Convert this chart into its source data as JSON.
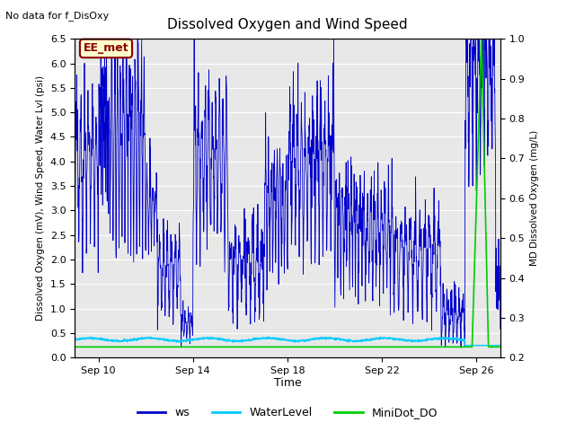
{
  "title": "Dissolved Oxygen and Wind Speed",
  "subtitle": "No data for f_DisOxy",
  "annotation": "EE_met",
  "xlabel": "Time",
  "ylabel_left": "Dissolved Oxygen (mV), Wind Speed, Water Lvl (psi)",
  "ylabel_right": "MD Dissolved Oxygen (mg/L)",
  "ylim_left": [
    0.0,
    6.5
  ],
  "ylim_right": [
    0.2,
    1.0
  ],
  "yticks_left": [
    0.0,
    0.5,
    1.0,
    1.5,
    2.0,
    2.5,
    3.0,
    3.5,
    4.0,
    4.5,
    5.0,
    5.5,
    6.0,
    6.5
  ],
  "yticks_right": [
    0.2,
    0.3,
    0.4,
    0.5,
    0.6,
    0.7,
    0.8,
    0.9,
    1.0
  ],
  "xtick_labels": [
    "Sep 10",
    "Sep 14",
    "Sep 18",
    "Sep 22",
    "Sep 26"
  ],
  "plot_bg_color": "#e8e8e8",
  "ws_color": "#0000cc",
  "water_level_color": "#00ccff",
  "minidot_color": "#00cc00",
  "legend_ws": "ws",
  "legend_wl": "WaterLevel",
  "legend_md": "MiniDot_DO"
}
